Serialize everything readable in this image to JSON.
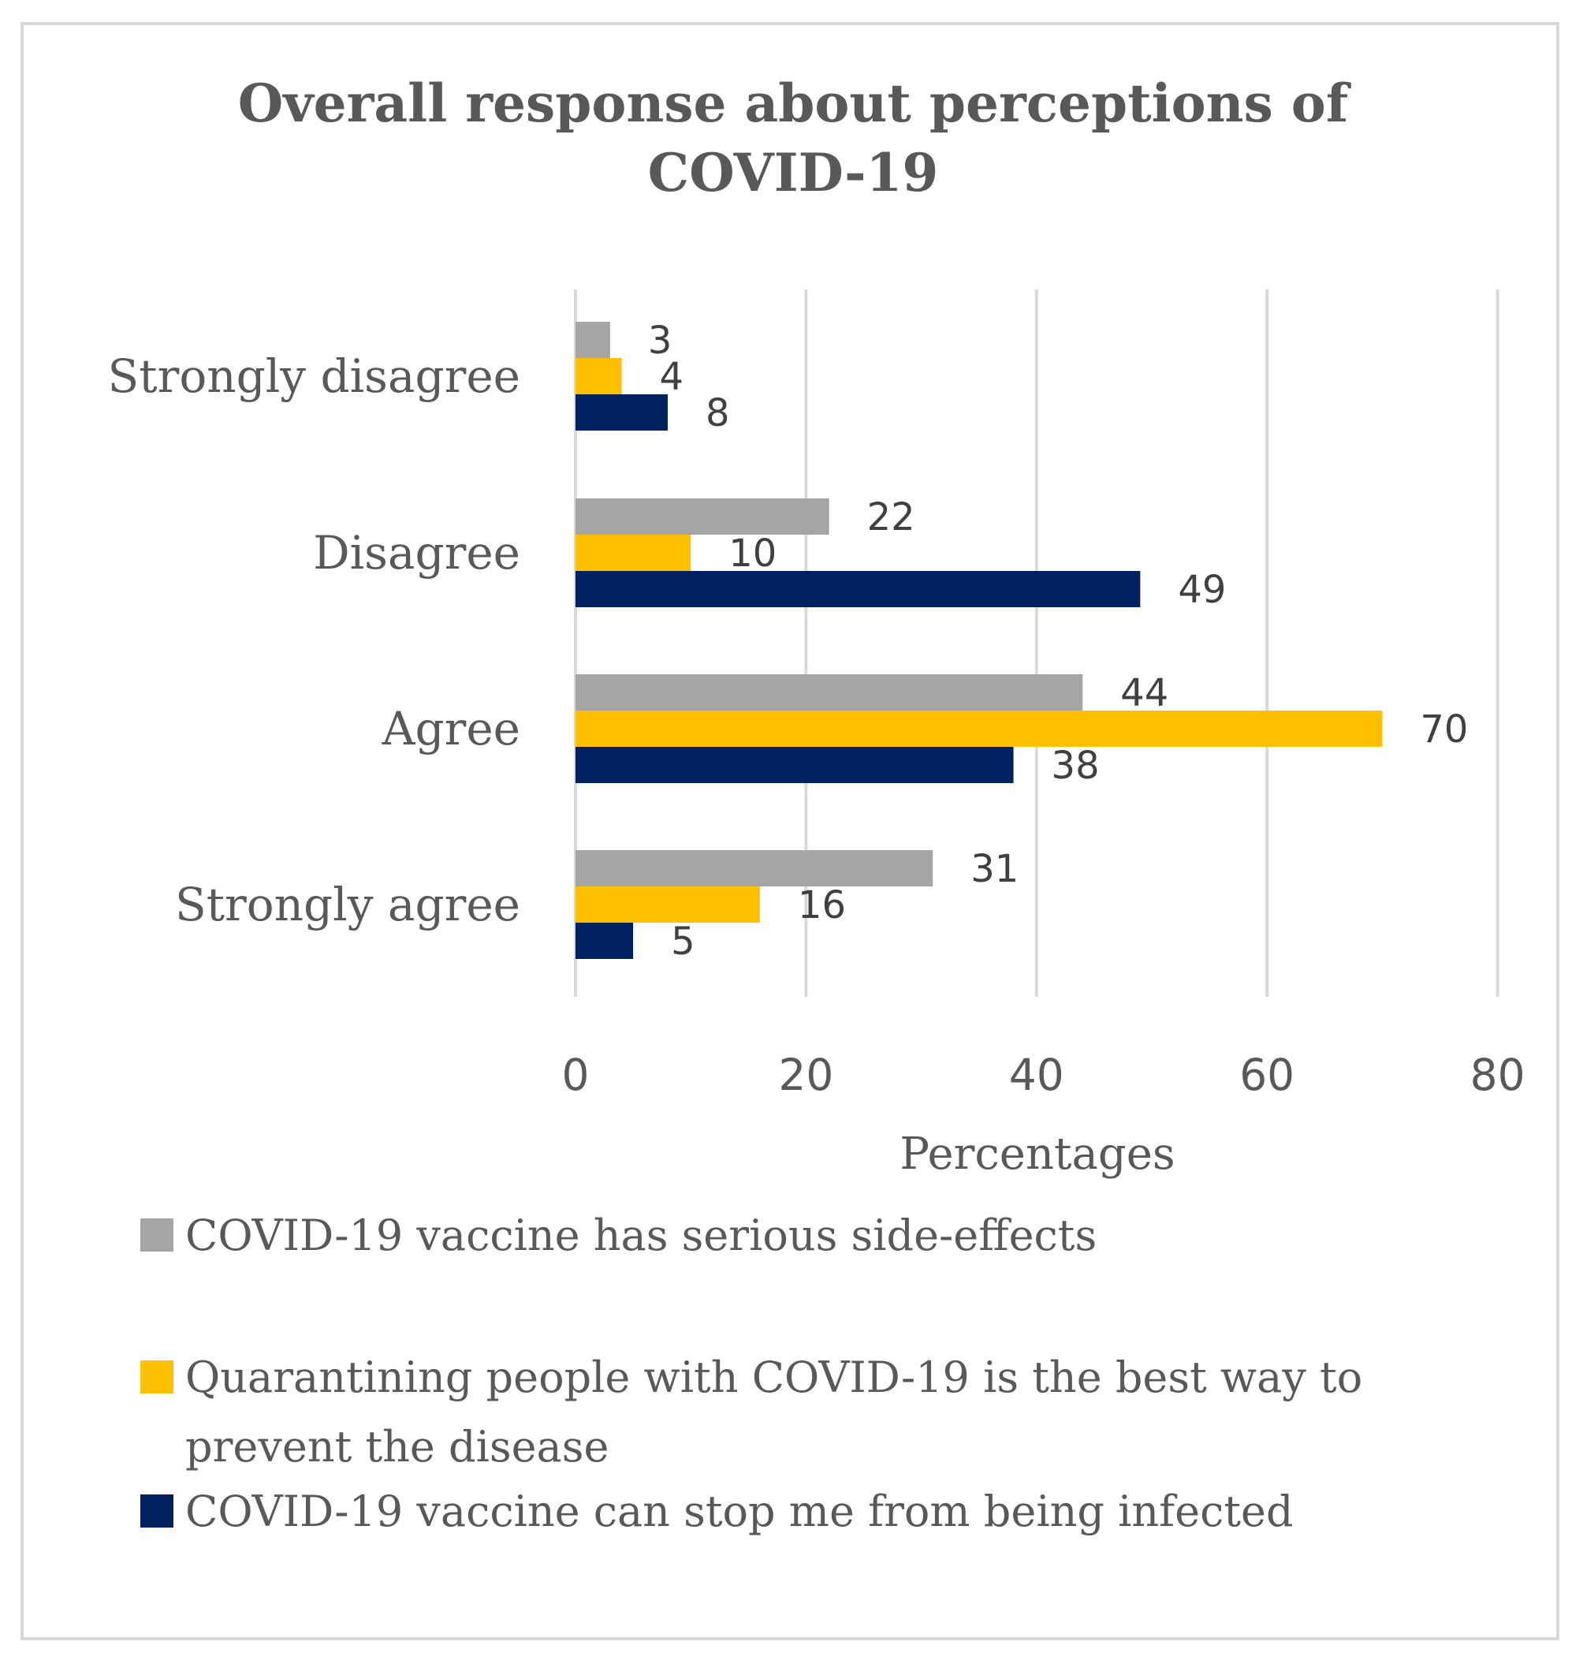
{
  "chart_data": {
    "type": "bar",
    "orientation": "horizontal",
    "title_lines": [
      "Overall response about perceptions of",
      "COVID-19"
    ],
    "categories": [
      "Strongly disagree",
      "Disagree",
      "Agree",
      "Strongly agree"
    ],
    "series": [
      {
        "name": "COVID-19 vaccine has serious side-effects",
        "color": "#a5a5a5",
        "values": [
          3,
          22,
          44,
          31
        ]
      },
      {
        "name": "Quarantining people with COVID-19 is the best way to prevent the disease",
        "legend_lines": [
          "Quarantining people with COVID-19 is the best way to",
          "prevent the disease"
        ],
        "color": "#ffc000",
        "values": [
          4,
          10,
          70,
          16
        ]
      },
      {
        "name": "COVID-19 vaccine can stop me from being infected",
        "color": "#002060",
        "values": [
          8,
          49,
          38,
          5
        ]
      }
    ],
    "xlim": [
      0,
      80
    ],
    "xticks": [
      "0",
      "20",
      "40",
      "60",
      "80"
    ],
    "xlabel": "Percentages",
    "gridlines": true,
    "legend_position": "bottom"
  }
}
